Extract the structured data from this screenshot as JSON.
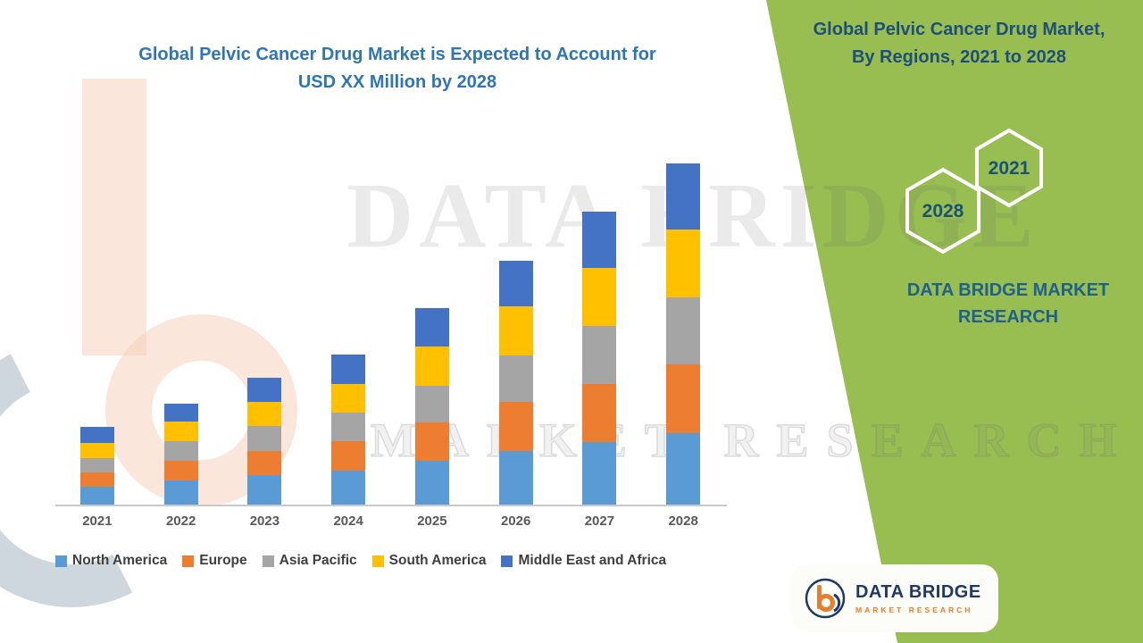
{
  "chart_data": {
    "type": "bar",
    "stacked": true,
    "title": "Global Pelvic Cancer Drug Market is Expected to Account for USD XX Million by 2028",
    "title_line1": "Global Pelvic Cancer Drug Market is Expected to Account for",
    "title_line2": "USD XX Million by 2028",
    "categories": [
      "2021",
      "2022",
      "2023",
      "2024",
      "2025",
      "2026",
      "2027",
      "2028"
    ],
    "series": [
      {
        "name": "North America",
        "color": "#5B9BD5",
        "values": [
          20,
          27,
          33,
          38,
          49,
          60,
          70,
          80
        ]
      },
      {
        "name": "Europe",
        "color": "#ED7D31",
        "values": [
          16,
          22,
          27,
          33,
          43,
          55,
          65,
          77
        ]
      },
      {
        "name": "Asia Pacific",
        "color": "#A5A5A5",
        "values": [
          16,
          22,
          28,
          32,
          41,
          52,
          65,
          75
        ]
      },
      {
        "name": "South America",
        "color": "#FFC000",
        "values": [
          17,
          22,
          27,
          32,
          44,
          55,
          65,
          76
        ]
      },
      {
        "name": "Middle East and Africa",
        "color": "#4472C4",
        "values": [
          18,
          20,
          27,
          33,
          43,
          51,
          63,
          74
        ]
      }
    ],
    "xlabel": "",
    "ylabel": "",
    "ylim": [
      0,
      400
    ],
    "grid": false,
    "value_axis_visible": false,
    "legend_position": "bottom"
  },
  "side_panel": {
    "bg_color": "#98BE52",
    "title_line1": "Global Pelvic Cancer Drug Market,",
    "title_line2": "By Regions, 2021 to 2028",
    "hex_labels": [
      "2021",
      "2028"
    ],
    "brand_line1": "DATA BRIDGE MARKET",
    "brand_line2": "RESEARCH"
  },
  "watermark": {
    "line1": "DATA BRIDGE",
    "line2": "MARKET RESEARCH"
  },
  "logo": {
    "name": "DATA BRIDGE",
    "tagline": "MARKET RESEARCH"
  },
  "colors": {
    "chart_title": "#2E75B6",
    "panel_green": "#98BE52",
    "logo_navy": "#1F3864",
    "logo_orange": "#E87E2B",
    "axis_text": "#595959",
    "legend_text": "#404040"
  }
}
